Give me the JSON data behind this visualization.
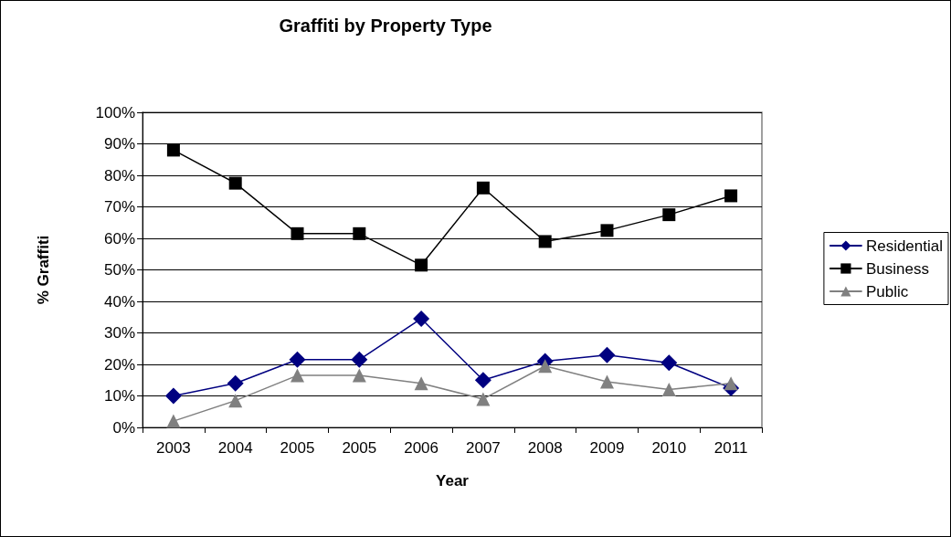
{
  "chart_data": {
    "type": "line",
    "title": "Graffiti by Property Type",
    "xlabel": "Year",
    "ylabel": "% Graffiti",
    "categories": [
      "2003",
      "2004",
      "2005",
      "2005",
      "2006",
      "2007",
      "2008",
      "2009",
      "2010",
      "2011"
    ],
    "series": [
      {
        "name": "Residential",
        "color": "#000080",
        "marker": "diamond",
        "values": [
          10,
          14,
          21.5,
          21.5,
          34.5,
          15,
          21,
          23,
          20.5,
          12.5
        ]
      },
      {
        "name": "Business",
        "color": "#000000",
        "marker": "square",
        "values": [
          88,
          77.5,
          61.5,
          61.5,
          51.5,
          76,
          59,
          62.5,
          67.5,
          73.5
        ]
      },
      {
        "name": "Public",
        "color": "#808080",
        "marker": "triangle",
        "values": [
          2,
          8.5,
          16.5,
          16.5,
          14,
          9,
          19.5,
          14.5,
          12,
          14
        ]
      }
    ],
    "ylim": [
      0,
      100
    ],
    "yticks": [
      {
        "value": 0,
        "label": "0%"
      },
      {
        "value": 10,
        "label": "10%"
      },
      {
        "value": 20,
        "label": "20%"
      },
      {
        "value": 30,
        "label": "30%"
      },
      {
        "value": 40,
        "label": "40%"
      },
      {
        "value": 50,
        "label": "50%"
      },
      {
        "value": 60,
        "label": "60%"
      },
      {
        "value": 70,
        "label": "70%"
      },
      {
        "value": 80,
        "label": "80%"
      },
      {
        "value": 90,
        "label": "90%"
      },
      {
        "value": 100,
        "label": "100%"
      }
    ],
    "grid": "y",
    "legend": "right",
    "line_style": "solid"
  }
}
